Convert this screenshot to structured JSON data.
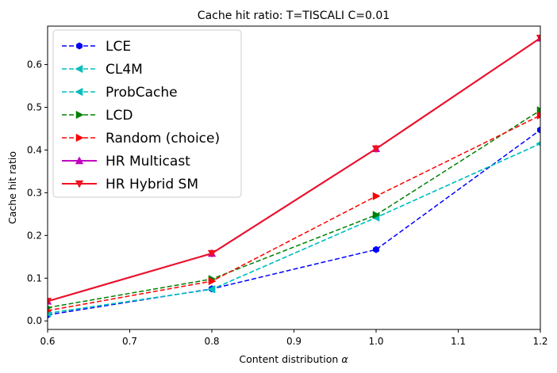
{
  "chart_data": {
    "type": "line",
    "title": "Cache hit ratio: T=TISCALI C=0.01",
    "xlabel": "Content distribution",
    "xlabel_symbol": "α",
    "ylabel": "Cache hit ratio",
    "xlim": [
      0.6,
      1.2
    ],
    "ylim": [
      -0.02,
      0.69
    ],
    "xticks": [
      "0.6",
      "0.7",
      "0.8",
      "0.9",
      "1.0",
      "1.1",
      "1.2"
    ],
    "yticks": [
      "0.0",
      "0.1",
      "0.2",
      "0.3",
      "0.4",
      "0.5",
      "0.6"
    ],
    "grid": false,
    "legend_position": "top-left",
    "x": [
      0.6,
      0.8,
      1.0,
      1.2
    ],
    "series": [
      {
        "name": "LCE",
        "values": [
          0.014,
          0.075,
          0.167,
          0.447
        ],
        "color": "#0000ff",
        "dash": "dashed",
        "marker": "hexagon"
      },
      {
        "name": "CL4M",
        "values": [
          0.018,
          0.074,
          0.242,
          0.415
        ],
        "color": "#00bfbf",
        "dash": "dashed",
        "marker": "triangle-left"
      },
      {
        "name": "ProbCache",
        "values": [
          0.018,
          0.074,
          0.242,
          0.415
        ],
        "color": "#00bfbf",
        "dash": "dashed",
        "marker": "triangle-left"
      },
      {
        "name": "LCD",
        "values": [
          0.031,
          0.098,
          0.248,
          0.493
        ],
        "color": "#008000",
        "dash": "dashed",
        "marker": "triangle-right"
      },
      {
        "name": "Random (choice)",
        "values": [
          0.024,
          0.093,
          0.292,
          0.481
        ],
        "color": "#ff0000",
        "dash": "dashed",
        "marker": "triangle-right"
      },
      {
        "name": "HR Multicast",
        "values": [
          0.046,
          0.158,
          0.403,
          0.662
        ],
        "color": "#bf00bf",
        "dash": "solid",
        "marker": "triangle-up"
      },
      {
        "name": "HR Hybrid SM",
        "values": [
          0.046,
          0.158,
          0.403,
          0.662
        ],
        "color": "#ee1122",
        "dash": "solid",
        "marker": "triangle-down"
      }
    ]
  }
}
